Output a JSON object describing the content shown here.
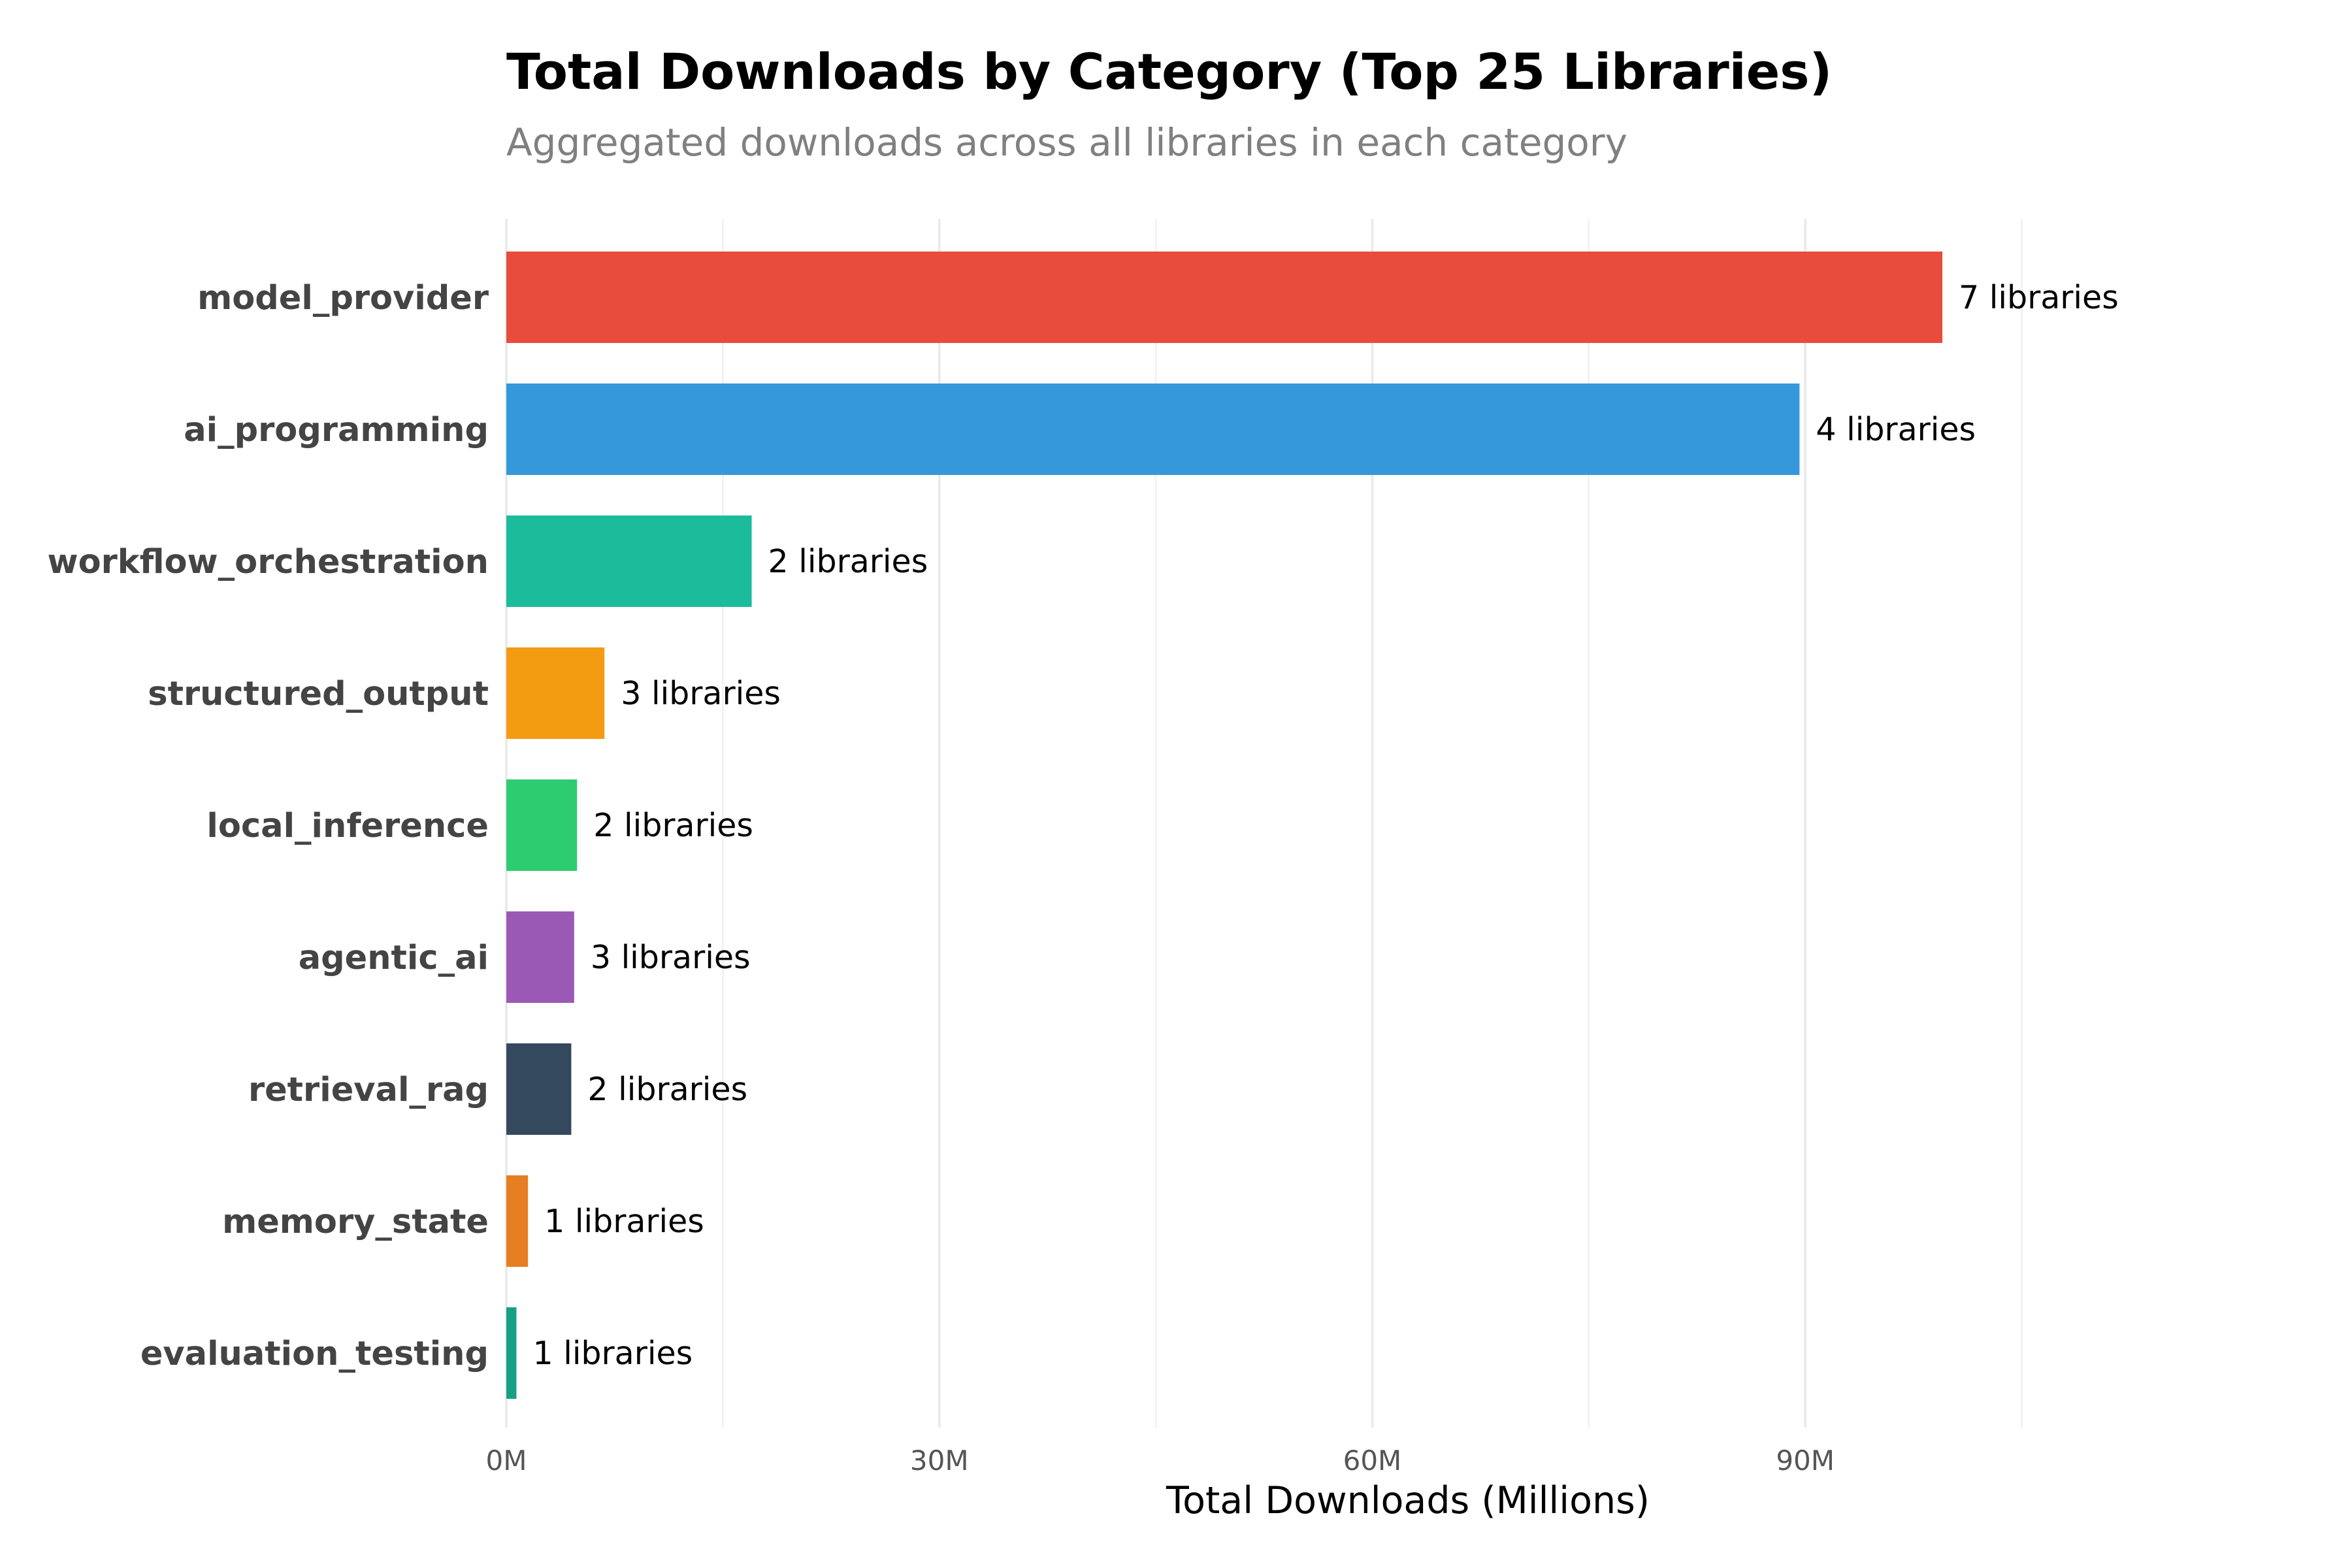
{
  "chart_data": {
    "type": "bar",
    "orientation": "horizontal",
    "title": "Total Downloads by Category (Top 25 Libraries)",
    "subtitle": "Aggregated downloads across all libraries in each category",
    "xlabel": "Total Downloads (Millions)",
    "ylabel": "",
    "xlim": [
      0,
      110
    ],
    "xticks": [
      0,
      30,
      60,
      90
    ],
    "xtick_labels": [
      "0M",
      "30M",
      "60M",
      "90M"
    ],
    "grid": true,
    "categories": [
      "model_provider",
      "ai_programming",
      "workflow_orchestration",
      "structured_output",
      "local_inference",
      "agentic_ai",
      "retrieval_rag",
      "memory_state",
      "evaluation_testing"
    ],
    "values": [
      99.5,
      89.6,
      17.0,
      6.8,
      4.9,
      4.7,
      4.5,
      1.5,
      0.7
    ],
    "bar_labels": [
      "7 libraries",
      "4 libraries",
      "2 libraries",
      "3 libraries",
      "2 libraries",
      "3 libraries",
      "2 libraries",
      "1 libraries",
      "1 libraries"
    ],
    "colors": [
      "#e74c3c",
      "#3498db",
      "#1abc9c",
      "#f39c12",
      "#2ecc71",
      "#9b59b6",
      "#34495e",
      "#e67e22",
      "#16a085"
    ]
  }
}
